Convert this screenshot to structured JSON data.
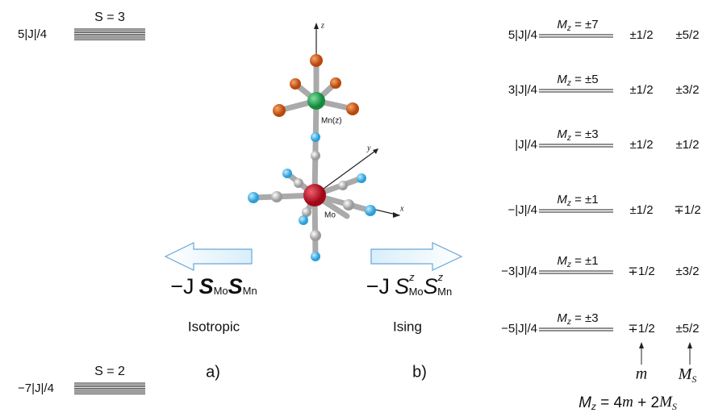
{
  "left_levels": [
    {
      "energy": "5|J|/4",
      "label": "S = 3"
    },
    {
      "energy": "−7|J|/4",
      "label": "S = 2"
    }
  ],
  "axes": {
    "z": "z",
    "y": "y",
    "x": "x"
  },
  "atoms": {
    "mn": "Mn(z)",
    "mo": "Mo"
  },
  "isotropic": {
    "formula": {
      "minus_j": "−J",
      "s1": "S",
      "sub1": "Mo",
      "s2": "S",
      "sub2": "Mn"
    },
    "name": "Isotropic",
    "panel": "a)"
  },
  "ising": {
    "formula": {
      "minus_j": "−J",
      "s1": "S",
      "sup1": "z",
      "sub1": "Mo",
      "s2": "S",
      "sup2": "z",
      "sub2": "Mn"
    },
    "name": "Ising",
    "panel": "b)"
  },
  "right_levels": [
    {
      "energy": "5|J|/4",
      "mz": "M",
      "mz_sub": "z",
      "mz_value": " = ±7",
      "m": "±1/2",
      "ms": "±5/2"
    },
    {
      "energy": "3|J|/4",
      "mz": "M",
      "mz_sub": "z",
      "mz_value": " = ±5",
      "m": "±1/2",
      "ms": "±3/2"
    },
    {
      "energy": "|J|/4",
      "mz": "M",
      "mz_sub": "z",
      "mz_value": " = ±3",
      "m": "±1/2",
      "ms": "±1/2"
    },
    {
      "energy": "−|J|/4",
      "mz": "M",
      "mz_sub": "z",
      "mz_value": " = ±1",
      "m": "±1/2",
      "ms": "∓1/2"
    },
    {
      "energy": "−3|J|/4",
      "mz": "M",
      "mz_sub": "z",
      "mz_value": " = ±1",
      "m": "∓1/2",
      "ms": "±3/2"
    },
    {
      "energy": "−5|J|/4",
      "mz": "M",
      "mz_sub": "z",
      "mz_value": " = ±3",
      "m": "∓1/2",
      "ms": "±5/2"
    }
  ],
  "column_labels": {
    "m": "m",
    "ms": "M",
    "ms_sub": "S"
  },
  "relation": {
    "lhs": "M",
    "lhs_sub": "z",
    "eq": " = 4",
    "m": "m",
    "plus": " + 2",
    "ms": "M",
    "ms_sub": "S"
  }
}
